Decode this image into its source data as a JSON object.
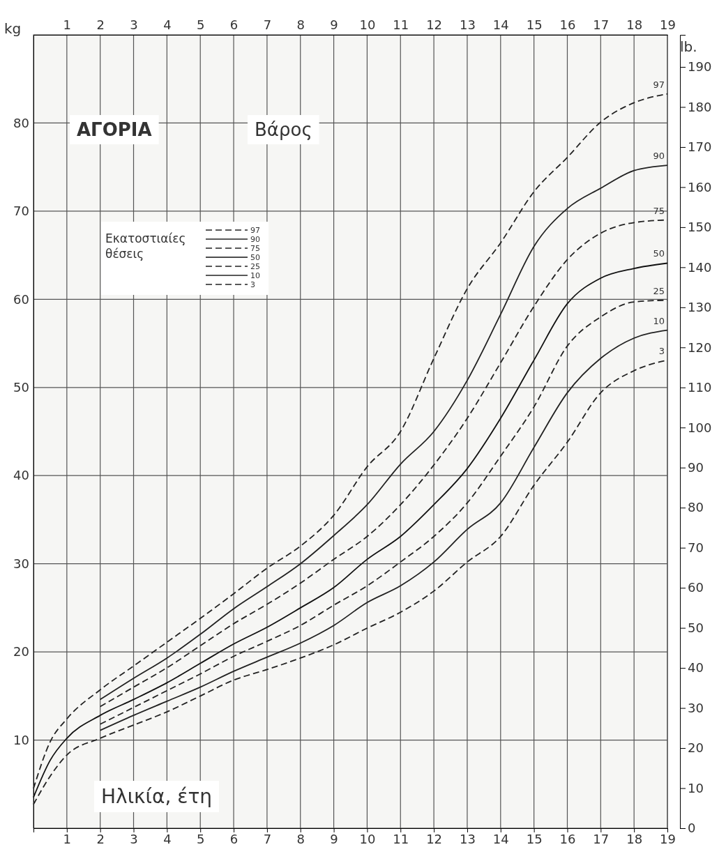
{
  "chart_data": {
    "type": "line",
    "title": "ΑΓΟΡΙΑ",
    "subtitle": "Βάρος",
    "xlabel": "Ηλικία, έτη",
    "ylabel": "kg",
    "y2label": "lb.",
    "legend_title": "Εκατοστιαίες θέσεις",
    "x": [
      0,
      0.5,
      1,
      2,
      3,
      4,
      5,
      6,
      7,
      8,
      9,
      10,
      11,
      12,
      13,
      14,
      15,
      16,
      17,
      18,
      19
    ],
    "series": [
      {
        "name": "97",
        "color": "#222222",
        "line_style": "dashed",
        "values": [
          4.5,
          9.8,
          12.4,
          15.7,
          18.4,
          21.1,
          23.8,
          26.6,
          29.5,
          32,
          35.5,
          41,
          45,
          53.3,
          61.2,
          66.4,
          72.2,
          76.1,
          80.1,
          82.3,
          83.3
        ]
      },
      {
        "name": "90",
        "color": "#222222",
        "line_style": "solid",
        "values": [
          null,
          null,
          null,
          14.6,
          17,
          19.3,
          22,
          24.9,
          27.4,
          30,
          33.2,
          36.7,
          41.3,
          45,
          50.8,
          58.3,
          66,
          70.3,
          72.6,
          74.6,
          75.2
        ]
      },
      {
        "name": "75",
        "color": "#222222",
        "line_style": "dashed",
        "values": [
          null,
          null,
          null,
          13.8,
          16,
          18.2,
          20.7,
          23.2,
          25.4,
          27.8,
          30.5,
          33.1,
          36.7,
          41.2,
          46.5,
          52.8,
          59.2,
          64.5,
          67.5,
          68.7,
          69
        ]
      },
      {
        "name": "50",
        "color": "#111111",
        "line_style": "solid",
        "values": [
          3.5,
          7.7,
          10.2,
          12.8,
          14.6,
          16.5,
          18.7,
          20.9,
          22.8,
          25,
          27.3,
          30.5,
          33.1,
          36.7,
          40.8,
          46.5,
          53.1,
          59.5,
          62.4,
          63.5,
          64.1
        ]
      },
      {
        "name": "25",
        "color": "#222222",
        "line_style": "dashed",
        "values": [
          null,
          null,
          null,
          11.8,
          13.7,
          15.6,
          17.5,
          19.5,
          21.2,
          23,
          25.3,
          27.5,
          30.2,
          33.1,
          36.9,
          42.2,
          47.8,
          54.7,
          58,
          59.7,
          59.9
        ]
      },
      {
        "name": "10",
        "color": "#222222",
        "line_style": "solid",
        "values": [
          null,
          null,
          null,
          11.1,
          12.8,
          14.4,
          16,
          17.8,
          19.4,
          21,
          23,
          25.6,
          27.5,
          30.2,
          33.9,
          36.9,
          43.2,
          49.4,
          53.3,
          55.6,
          56.5
        ]
      },
      {
        "name": "3",
        "color": "#222222",
        "line_style": "dashed",
        "values": [
          2.7,
          5.9,
          8.3,
          10.2,
          11.7,
          13.2,
          15,
          16.8,
          18,
          19.3,
          20.8,
          22.7,
          24.5,
          26.9,
          30.2,
          33.1,
          38.9,
          43.8,
          49.4,
          51.9,
          53.1
        ]
      }
    ],
    "xlim": [
      0,
      19
    ],
    "xticks": [
      1,
      2,
      3,
      4,
      5,
      6,
      7,
      8,
      9,
      10,
      11,
      12,
      13,
      14,
      15,
      16,
      17,
      18,
      19
    ],
    "x2lim": [
      0,
      19
    ],
    "x2ticks": [
      1,
      2,
      3,
      4,
      5,
      6,
      7,
      8,
      9,
      10,
      11,
      12,
      13,
      14,
      15,
      16,
      17,
      18,
      19
    ],
    "ylim": [
      0,
      90
    ],
    "yticks": [
      10,
      20,
      30,
      40,
      50,
      60,
      70,
      80
    ],
    "y2lim": [
      0,
      198
    ],
    "y2ticks": [
      0,
      10,
      20,
      30,
      40,
      50,
      60,
      70,
      80,
      90,
      100,
      110,
      120,
      130,
      140,
      150,
      160,
      170,
      180,
      190
    ],
    "grid": true,
    "legend": "right",
    "marker": "none"
  }
}
